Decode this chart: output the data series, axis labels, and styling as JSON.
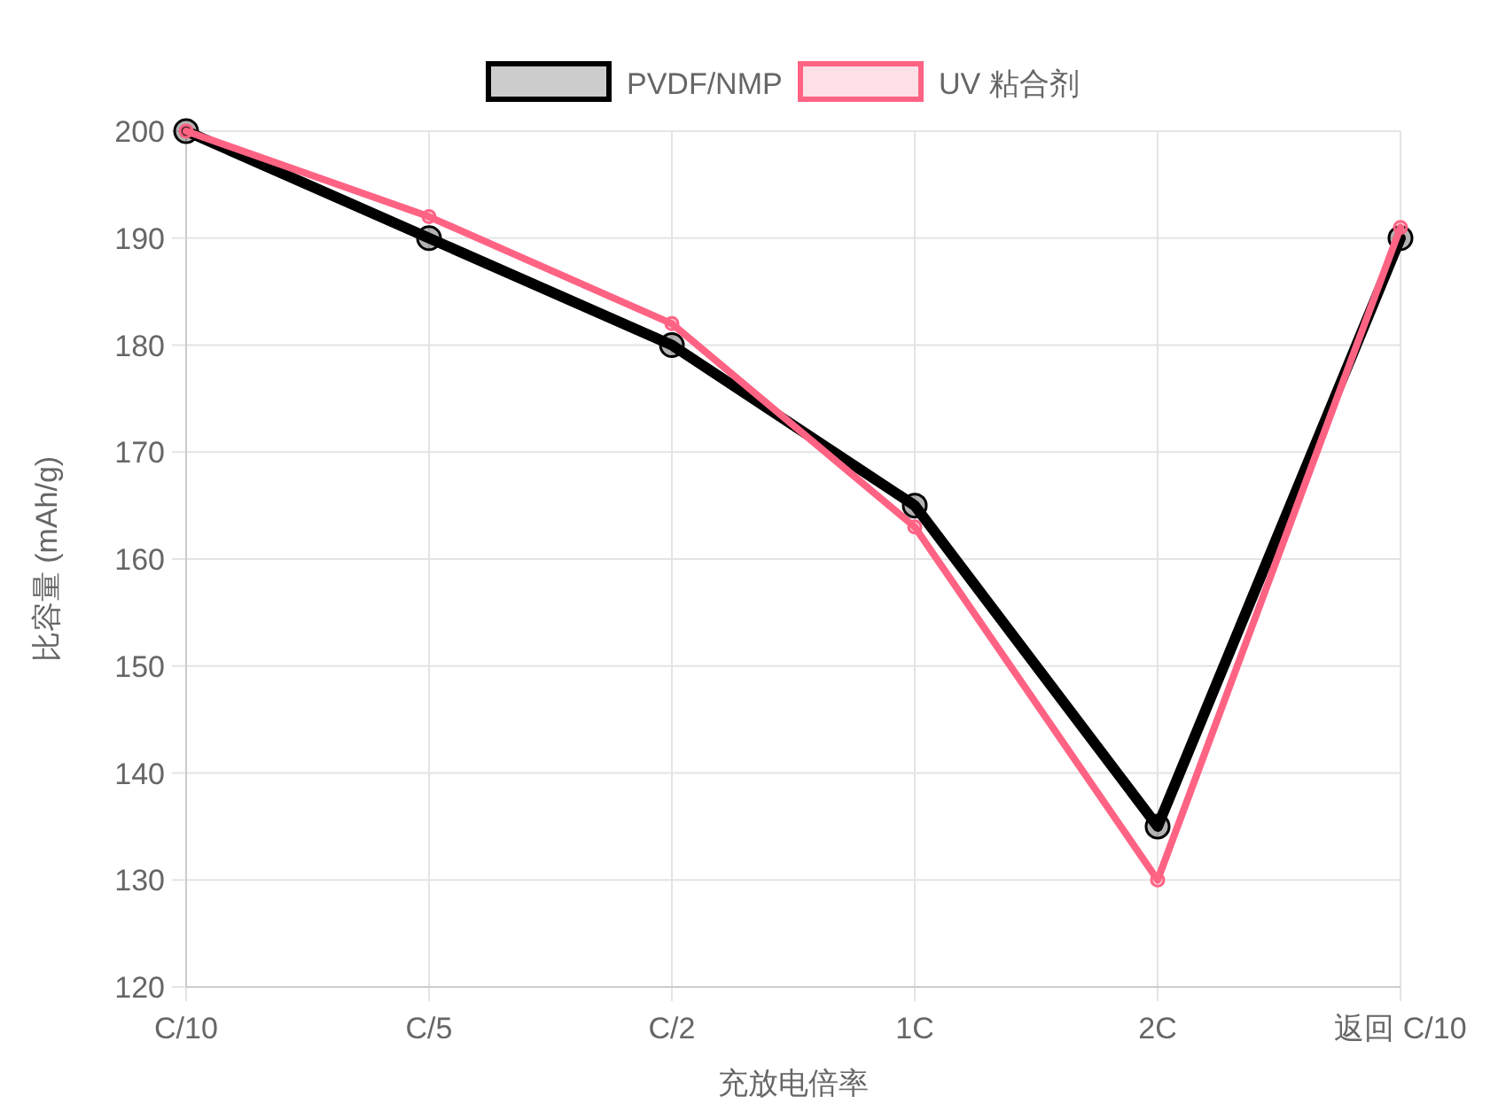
{
  "chart_data": {
    "type": "line",
    "xlabel": "充放电倍率",
    "ylabel": "比容量 (mAh/g)",
    "categories": [
      "C/10",
      "C/5",
      "C/2",
      "1C",
      "2C",
      "返回 C/10"
    ],
    "series": [
      {
        "name": "PVDF/NMP",
        "color": "#000000",
        "values": [
          200,
          190,
          180,
          165,
          135,
          190
        ]
      },
      {
        "name": "UV 粘合剂",
        "color": "#ff6384",
        "values": [
          200,
          192,
          182,
          163,
          130,
          191
        ]
      }
    ],
    "ylim": [
      120,
      200
    ],
    "yticks": [
      120,
      130,
      140,
      150,
      160,
      170,
      180,
      190,
      200
    ],
    "grid": true,
    "legend": "top",
    "marker": "circle",
    "line_style": "solid"
  }
}
